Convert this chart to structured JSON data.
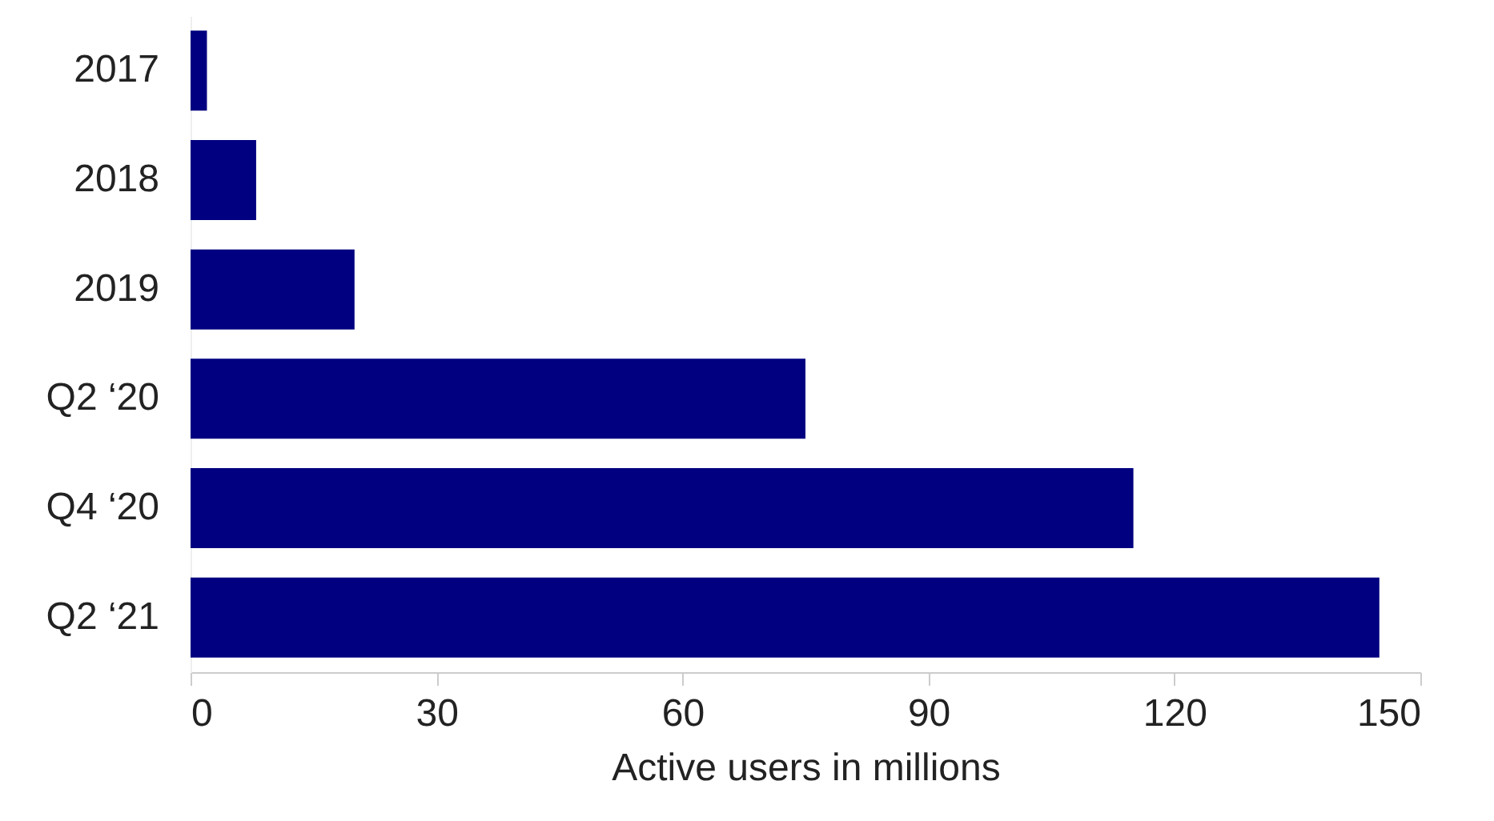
{
  "chart_data": {
    "type": "bar",
    "orientation": "horizontal",
    "xlabel": "Active users in millions",
    "categories": [
      "2017",
      "2018",
      "2019",
      "Q2 ‘20",
      "Q4 ‘20",
      "Q2 ‘21"
    ],
    "values": [
      2,
      8,
      20,
      75,
      115,
      145
    ],
    "color": "#000080",
    "xlim": [
      0,
      150
    ],
    "xticks": [
      0,
      30,
      60,
      90,
      120,
      150
    ],
    "grid": false
  }
}
